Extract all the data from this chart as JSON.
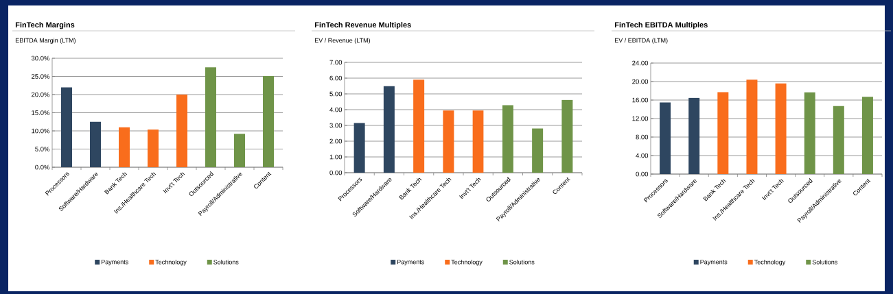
{
  "chart_data": [
    {
      "type": "bar",
      "title": "FinTech Margins",
      "subtitle": "EBITDA Margin (LTM)",
      "categories": [
        "Processors",
        "Software/Hardware",
        "Bank Tech",
        "Ins./Healthcare Tech",
        "Invt't Tech",
        "Outsourced",
        "Payroll/Administrative",
        "Content"
      ],
      "series": [
        {
          "name": "Payments",
          "color": "#2e4660",
          "values": [
            22.0,
            12.5,
            null,
            null,
            null,
            null,
            null,
            null
          ]
        },
        {
          "name": "Technology",
          "color": "#f96d1c",
          "values": [
            null,
            null,
            11.0,
            10.4,
            20.0,
            null,
            null,
            null
          ]
        },
        {
          "name": "Solutions",
          "color": "#6f9448",
          "values": [
            null,
            null,
            null,
            null,
            null,
            27.5,
            9.2,
            25.1
          ]
        }
      ],
      "ylim": [
        0,
        30
      ],
      "yticks": [
        {
          "value": 0,
          "label": "0.0%"
        },
        {
          "value": 5,
          "label": "5.0%"
        },
        {
          "value": 10,
          "label": "10.0%"
        },
        {
          "value": 15,
          "label": "15.0%"
        },
        {
          "value": 20,
          "label": "20.0%"
        },
        {
          "value": 25,
          "label": "25.0%"
        },
        {
          "value": 30,
          "label": "30.0%"
        }
      ],
      "grid": "y",
      "legend": "bottom"
    },
    {
      "type": "bar",
      "title": "FinTech Revenue Multiples",
      "subtitle": "EV / Revenue (LTM)",
      "categories": [
        "Processors",
        "Software/Hardware",
        "Bank Tech",
        "Ins./Healthcare Tech",
        "Invt't Tech",
        "Outsourced",
        "Payroll/Administrative",
        "Content"
      ],
      "series": [
        {
          "name": "Payments",
          "color": "#2e4660",
          "values": [
            3.15,
            5.5,
            null,
            null,
            null,
            null,
            null,
            null
          ]
        },
        {
          "name": "Technology",
          "color": "#f96d1c",
          "values": [
            null,
            null,
            5.9,
            3.95,
            3.95,
            null,
            null,
            null
          ]
        },
        {
          "name": "Solutions",
          "color": "#6f9448",
          "values": [
            null,
            null,
            null,
            null,
            null,
            4.28,
            2.8,
            4.62
          ]
        }
      ],
      "ylim": [
        0,
        7
      ],
      "yticks": [
        {
          "value": 0,
          "label": "0.00"
        },
        {
          "value": 1,
          "label": "1.00"
        },
        {
          "value": 2,
          "label": "2.00"
        },
        {
          "value": 3,
          "label": "3.00"
        },
        {
          "value": 4,
          "label": "4.00"
        },
        {
          "value": 5,
          "label": "5.00"
        },
        {
          "value": 6,
          "label": "6.00"
        },
        {
          "value": 7,
          "label": "7.00"
        }
      ],
      "grid": "y",
      "legend": "bottom"
    },
    {
      "type": "bar",
      "title": "FinTech EBITDA Multiples",
      "subtitle": "EV / EBITDA (LTM)",
      "categories": [
        "Processors",
        "Software/Hardware",
        "Bank Tech",
        "Ins./Healthcare Tech",
        "Invt't Tech",
        "Outsourced",
        "Payroll/Administrative",
        "Content"
      ],
      "series": [
        {
          "name": "Payments",
          "color": "#2e4660",
          "values": [
            15.5,
            16.5,
            null,
            null,
            null,
            null,
            null,
            null
          ]
        },
        {
          "name": "Technology",
          "color": "#f96d1c",
          "values": [
            null,
            null,
            17.7,
            20.4,
            19.6,
            null,
            null,
            null
          ]
        },
        {
          "name": "Solutions",
          "color": "#6f9448",
          "values": [
            null,
            null,
            null,
            null,
            null,
            17.7,
            14.7,
            16.7
          ]
        }
      ],
      "ylim": [
        0,
        24
      ],
      "yticks": [
        {
          "value": 0,
          "label": "0.00"
        },
        {
          "value": 4,
          "label": "4.00"
        },
        {
          "value": 8,
          "label": "8.00"
        },
        {
          "value": 12,
          "label": "12.00"
        },
        {
          "value": 16,
          "label": "16.00"
        },
        {
          "value": 20,
          "label": "20.00"
        },
        {
          "value": 24,
          "label": "24.00"
        }
      ],
      "grid": "y",
      "legend": "bottom"
    }
  ]
}
